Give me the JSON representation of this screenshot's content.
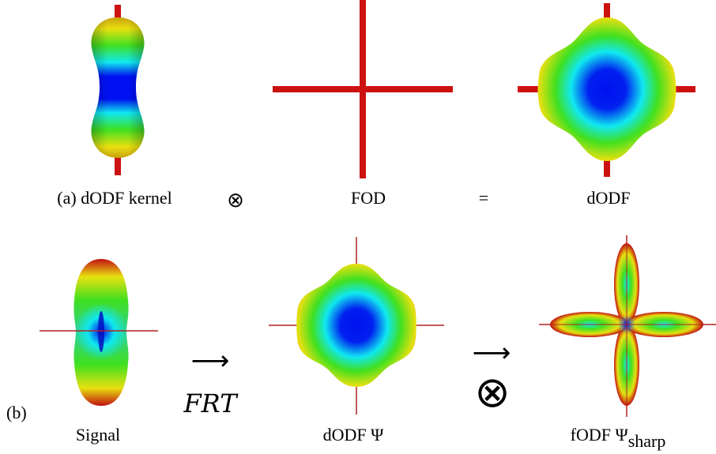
{
  "row_a": {
    "label_kernel": "(a) dODF kernel",
    "op_convolve": "⊗",
    "label_fod": "FOD",
    "op_equals": "=",
    "label_dodf": "dODF"
  },
  "row_b": {
    "tag": "(b)",
    "label_signal": "Signal",
    "arrow1": "⟶",
    "frt": "FRT",
    "label_dodf_psi": "dODF Ψ",
    "arrow2": "⟶",
    "op_convolve": "⊗",
    "label_fodf_main": "fODF Ψ",
    "label_fodf_sub": "sharp"
  },
  "colors": {
    "axis_red": "#cc1111",
    "thin_axis": "#b22222",
    "surface_blue": "#0010f0",
    "surface_cyan": "#10e8f0",
    "surface_green": "#40e020",
    "surface_yellow": "#e8e010",
    "surface_red": "#c01010"
  }
}
